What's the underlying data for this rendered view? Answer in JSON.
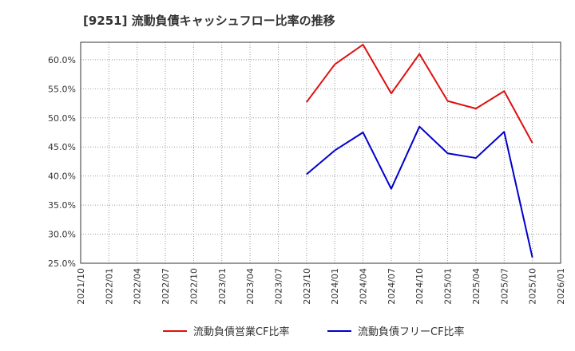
{
  "chart_data": {
    "type": "line",
    "title": "[9251]  流動負債キャッシュフロー比率の推移",
    "xlabel": "",
    "ylabel": "",
    "ylim": [
      25.0,
      63.0
    ],
    "yticks": [
      "25.0%",
      "30.0%",
      "35.0%",
      "40.0%",
      "45.0%",
      "50.0%",
      "55.0%",
      "60.0%"
    ],
    "ytick_values": [
      25,
      30,
      35,
      40,
      45,
      50,
      55,
      60
    ],
    "xticks": [
      "2021/10",
      "2022/01",
      "2022/04",
      "2022/07",
      "2022/10",
      "2023/01",
      "2023/04",
      "2023/07",
      "2023/10",
      "2024/01",
      "2024/04",
      "2024/07",
      "2024/10",
      "2025/01",
      "2025/04",
      "2025/07",
      "2025/10",
      "2026/01"
    ],
    "grid": true,
    "legend_position": "bottom",
    "series": [
      {
        "name": "流動負債営業CF比率",
        "color": "#dd1111",
        "x": [
          "2023/10",
          "2024/01",
          "2024/04",
          "2024/07",
          "2024/10",
          "2025/01",
          "2025/04",
          "2025/07",
          "2025/10"
        ],
        "values": [
          52.7,
          59.2,
          62.6,
          54.2,
          61.0,
          52.9,
          51.6,
          54.6,
          45.7
        ]
      },
      {
        "name": "流動負債フリーCF比率",
        "color": "#0000cc",
        "x": [
          "2023/10",
          "2024/01",
          "2024/04",
          "2024/07",
          "2024/10",
          "2025/01",
          "2025/04",
          "2025/07",
          "2025/10"
        ],
        "values": [
          40.3,
          44.4,
          47.5,
          37.8,
          48.5,
          43.9,
          43.1,
          47.6,
          26.0
        ]
      }
    ]
  }
}
